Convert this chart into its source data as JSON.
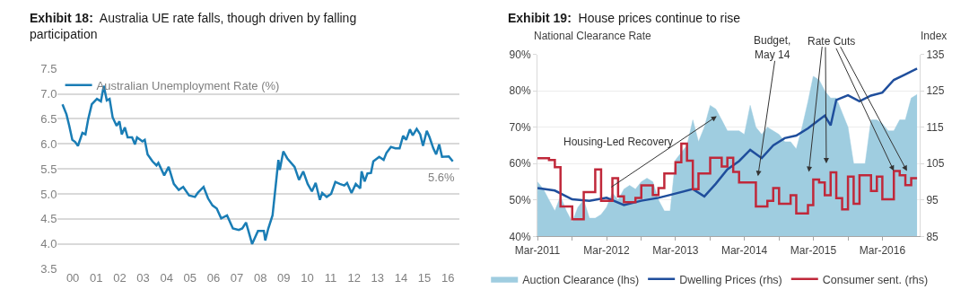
{
  "chart_data": [
    {
      "type": "line",
      "title": "Exhibit 18:  Australia UE rate falls, though driven by falling participation",
      "legend": "top left",
      "grid": "y",
      "marker": "none",
      "xlim": [
        -0.64,
        16.48
      ],
      "xticks": [
        {
          "value": 0,
          "label": "00"
        },
        {
          "value": 1,
          "label": "01"
        },
        {
          "value": 2,
          "label": "02"
        },
        {
          "value": 3,
          "label": "03"
        },
        {
          "value": 4,
          "label": "04"
        },
        {
          "value": 5,
          "label": "05"
        },
        {
          "value": 6,
          "label": "06"
        },
        {
          "value": 7,
          "label": "07"
        },
        {
          "value": 8,
          "label": "08"
        },
        {
          "value": 9,
          "label": "09"
        },
        10,
        11,
        12,
        13,
        14,
        15,
        16
      ],
      "ylim": [
        3.5,
        7.5
      ],
      "yticks": [
        {
          "value": 3.5,
          "label": "3.5"
        },
        {
          "value": 4,
          "label": "4.0"
        },
        {
          "value": 4.5,
          "label": "4.5"
        },
        {
          "value": 5,
          "label": "5.0"
        },
        {
          "value": 5.5,
          "label": "5.5"
        },
        {
          "value": 6,
          "label": "6.0"
        },
        {
          "value": 6.5,
          "label": "6.5"
        },
        {
          "value": 7,
          "label": "7.0"
        },
        {
          "value": 7.5,
          "label": "7.5"
        }
      ],
      "annotations": [
        {
          "text": "5.6%",
          "x": 16.21,
          "y": 5.65
        }
      ],
      "series": [
        {
          "name": "Australian Unemployment Rate (%)",
          "color": "#1a7db5",
          "x": [
            -0.44,
            -0.27,
            -0.15,
            -0.02,
            0.1,
            0.22,
            0.41,
            0.54,
            0.66,
            0.81,
            1.03,
            1.2,
            1.32,
            1.45,
            1.57,
            1.7,
            1.87,
            1.99,
            2.09,
            2.22,
            2.34,
            2.53,
            2.65,
            2.74,
            2.97,
            3.07,
            3.19,
            3.4,
            3.57,
            3.65,
            3.9,
            4.09,
            4.31,
            4.52,
            4.71,
            4.96,
            5.21,
            5.33,
            5.58,
            5.77,
            5.96,
            6.14,
            6.33,
            6.58,
            6.83,
            7.08,
            7.23,
            7.39,
            7.65,
            7.9,
            8.15,
            8.21,
            8.34,
            8.52,
            8.65,
            8.77,
            8.83,
            8.98,
            9.15,
            9.46,
            9.65,
            9.83,
            10.02,
            10.2,
            10.36,
            10.54,
            10.64,
            10.83,
            11.02,
            11.2,
            11.39,
            11.58,
            11.7,
            11.89,
            12.07,
            12.26,
            12.32,
            12.45,
            12.57,
            12.72,
            12.82,
            13.07,
            13.26,
            13.38,
            13.57,
            13.76,
            13.94,
            14.09,
            14.22,
            14.38,
            14.5,
            14.67,
            14.82,
            14.94,
            15.1,
            15.22,
            15.38,
            15.5,
            15.63,
            15.75,
            16.04,
            16.21
          ],
          "values": [
            6.79,
            6.59,
            6.36,
            6.08,
            6.04,
            5.96,
            6.22,
            6.19,
            6.5,
            6.79,
            6.9,
            6.85,
            7.16,
            6.87,
            6.9,
            6.53,
            6.36,
            6.45,
            6.19,
            6.33,
            6.13,
            6.13,
            5.99,
            6.13,
            6.05,
            6.08,
            5.79,
            5.65,
            5.57,
            5.62,
            5.37,
            5.54,
            5.2,
            5.08,
            5.14,
            4.97,
            4.94,
            5.02,
            5.14,
            4.91,
            4.77,
            4.71,
            4.51,
            4.57,
            4.31,
            4.28,
            4.31,
            4.43,
            4.0,
            4.26,
            4.26,
            4.07,
            4.31,
            4.57,
            5.14,
            5.68,
            5.48,
            5.85,
            5.71,
            5.54,
            5.28,
            5.45,
            5.2,
            5.05,
            5.22,
            4.88,
            5.02,
            4.94,
            5.0,
            5.24,
            5.2,
            5.17,
            5.22,
            5.02,
            5.2,
            5.11,
            5.45,
            5.25,
            5.41,
            5.42,
            5.65,
            5.74,
            5.68,
            5.82,
            5.94,
            5.91,
            5.91,
            6.16,
            6.08,
            6.29,
            6.17,
            6.3,
            6.19,
            5.96,
            6.26,
            6.13,
            5.91,
            5.79,
            5.99,
            5.74,
            5.75,
            5.65
          ]
        }
      ]
    },
    {
      "type": "line",
      "title": "Exhibit 19:  House prices continue to rise",
      "ylabel": "National Clearance Rate",
      "y2label": "Index",
      "legend": "bottom",
      "grid": "y",
      "marker": "none",
      "xlim": [
        "2011-03-01",
        "2016-09-15"
      ],
      "xticks": [
        {
          "value": "2011-03-01",
          "label": "Mar-2011"
        },
        {
          "value": "2011-09-01",
          "label": null
        },
        {
          "value": "2012-03-01",
          "label": "Mar-2012"
        },
        {
          "value": "2012-09-01",
          "label": null
        },
        {
          "value": "2013-03-01",
          "label": "Mar-2013"
        },
        {
          "value": "2013-09-01",
          "label": null
        },
        {
          "value": "2014-03-01",
          "label": "Mar-2014"
        },
        {
          "value": "2014-09-01",
          "label": null
        },
        {
          "value": "2015-03-01",
          "label": "Mar-2015"
        },
        {
          "value": "2015-09-01",
          "label": null
        },
        {
          "value": "2016-03-01",
          "label": "Mar-2016"
        }
      ],
      "ylim": [
        40,
        90
      ],
      "yticks": [
        {
          "value": 40,
          "label": "40%"
        },
        {
          "value": 50,
          "label": "50%"
        },
        {
          "value": 60,
          "label": "60%"
        },
        {
          "value": 70,
          "label": "70%"
        },
        {
          "value": 80,
          "label": "80%"
        },
        {
          "value": 90,
          "label": "90%"
        }
      ],
      "y2lim": [
        85,
        135
      ],
      "y2ticks": [
        85,
        95,
        105,
        115,
        125,
        135
      ],
      "annotations": [
        "Housing-Led Recovery",
        "Budget, May 14",
        {
          "text": "Rate Cuts",
          "x": "2016-05",
          "y": 58
        }
      ],
      "series": [
        {
          "name": "Auction Clearance (lhs)",
          "type": "area",
          "color": "#9fcde0",
          "x": [
            "2011-03",
            "2011-04",
            "2011-05",
            "2011-06",
            "2011-07",
            "2011-08",
            "2011-09",
            "2011-10",
            "2011-11",
            "2011-12",
            "2012-01",
            "2012-02",
            "2012-03",
            "2012-04",
            "2012-05",
            "2012-06",
            "2012-07",
            "2012-08",
            "2012-09",
            "2012-10",
            "2012-11",
            "2012-12",
            "2013-01",
            "2013-02",
            "2013-03",
            "2013-04",
            "2013-05",
            "2013-06",
            "2013-07",
            "2013-08",
            "2013-09",
            "2013-10",
            "2013-11",
            "2013-12",
            "2014-01",
            "2014-02",
            "2014-03",
            "2014-04",
            "2014-05",
            "2014-06",
            "2014-07",
            "2014-08",
            "2014-09",
            "2014-10",
            "2014-11",
            "2014-12",
            "2015-01",
            "2015-02",
            "2015-03",
            "2015-04",
            "2015-05",
            "2015-06",
            "2015-07",
            "2015-08",
            "2015-09",
            "2015-10",
            "2015-11",
            "2015-12",
            "2016-01",
            "2016-02",
            "2016-03",
            "2016-04",
            "2016-05",
            "2016-06",
            "2016-07",
            "2016-08",
            "2016-09"
          ],
          "values": [
            55,
            53,
            50,
            47,
            51,
            47,
            44,
            48,
            50,
            45,
            45,
            46,
            48,
            52,
            50,
            53,
            54,
            53,
            55,
            56,
            55,
            50,
            47,
            47,
            61,
            63,
            65,
            72,
            66,
            70,
            76,
            75,
            72,
            69,
            69,
            69,
            68,
            76,
            70,
            68,
            70,
            69,
            68,
            66,
            66,
            64,
            70,
            77,
            84,
            83,
            80,
            78,
            78,
            74,
            70,
            60,
            60,
            60,
            72,
            72,
            71,
            69,
            69,
            72,
            72,
            78,
            79
          ]
        },
        {
          "name": "Dwelling Prices (rhs)",
          "type": "line",
          "axis": "y2",
          "color": "#1f4e9c",
          "x": [
            "2011-03",
            "2011-06",
            "2011-09",
            "2011-12",
            "2012-03",
            "2012-06",
            "2012-09",
            "2012-12",
            "2013-02",
            "2013-06",
            "2013-08",
            "2013-10",
            "2013-12",
            "2014-02",
            "2014-04",
            "2014-06",
            "2014-08",
            "2014-10",
            "2014-12",
            "2015-02",
            "2015-04",
            "2015-05",
            "2015-06",
            "2015-07",
            "2015-09",
            "2015-11",
            "2016-01",
            "2016-03",
            "2016-05",
            "2016-07",
            "2016-09"
          ],
          "values": [
            98.3,
            97.6,
            95.2,
            94.8,
            95.6,
            93.6,
            94.8,
            95.6,
            96.4,
            98,
            96,
            99.5,
            103.4,
            105.7,
            108.8,
            106.5,
            110,
            112,
            112.7,
            114.7,
            117,
            118.2,
            115.5,
            122.5,
            123.8,
            122.1,
            123.7,
            124.5,
            128,
            129.5,
            131.1
          ]
        },
        {
          "name": "Consumer sent. (rhs)",
          "type": "step",
          "axis": "y2",
          "color": "#c0283a",
          "x": [
            "2011-03",
            "2011-05",
            "2011-06",
            "2011-07",
            "2011-09",
            "2011-11",
            "2012-01",
            "2012-02",
            "2012-04",
            "2012-05",
            "2012-06",
            "2012-08",
            "2012-09",
            "2012-11",
            "2012-12",
            "2013-01",
            "2013-03",
            "2013-04",
            "2013-05",
            "2013-06",
            "2013-07",
            "2013-09",
            "2013-11",
            "2013-12",
            "2014-01",
            "2014-02",
            "2014-05",
            "2014-07",
            "2014-08",
            "2014-09",
            "2014-11",
            "2014-12",
            "2015-02",
            "2015-03",
            "2015-04",
            "2015-05",
            "2015-06",
            "2015-07",
            "2015-08",
            "2015-09",
            "2015-10",
            "2015-11",
            "2016-01",
            "2016-02",
            "2016-03",
            "2016-05",
            "2016-06",
            "2016-07",
            "2016-08",
            "2016-09"
          ],
          "values": [
            106.5,
            106,
            104,
            93.2,
            89.7,
            97.2,
            103.4,
            94.8,
            101,
            96,
            94.4,
            95.6,
            99,
            96.4,
            98.3,
            102.3,
            105.4,
            110.5,
            105.8,
            98,
            102.3,
            106.6,
            104.2,
            106.6,
            102.7,
            99.8,
            93.2,
            94.8,
            98.3,
            94,
            96.3,
            91.3,
            93.6,
            100.6,
            99.8,
            96.3,
            102.6,
            95.5,
            92.4,
            101.4,
            94,
            101.8,
            97.5,
            101.4,
            95.2,
            103,
            101.8,
            99.1,
            101,
            101
          ]
        }
      ]
    }
  ]
}
